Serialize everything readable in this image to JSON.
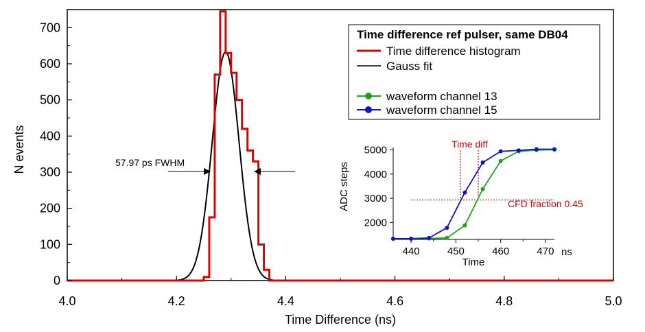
{
  "chart_data": [
    {
      "type": "line",
      "xlabel": "Time Difference (ns)",
      "ylabel": "N events",
      "xlim": [
        4.0,
        5.0
      ],
      "ylim": [
        0,
        750
      ],
      "xticks": [
        "4.0",
        "4.2",
        "4.4",
        "4.6",
        "4.8",
        "5.0"
      ],
      "yticks": [
        "0",
        "100",
        "200",
        "300",
        "400",
        "500",
        "600",
        "700"
      ],
      "legend": {
        "title": "Time difference ref pulser, same DB04",
        "entries": [
          {
            "label": "Time difference histogram",
            "color": "#e00000"
          },
          {
            "label": "Gauss fit",
            "color": "#000000"
          },
          {
            "label": "waveform channel 13",
            "color": "#1aa31a"
          },
          {
            "label": "waveform channel 15",
            "color": "#1010d0"
          }
        ]
      },
      "annotation": "57.97 ps FWHM",
      "series": [
        {
          "name": "Time difference histogram",
          "style": "step",
          "color": "#e00000",
          "bin_edges": [
            4.0,
            4.25,
            4.26,
            4.27,
            4.28,
            4.29,
            4.3,
            4.31,
            4.32,
            4.33,
            4.34,
            4.35,
            4.36,
            4.37,
            5.0
          ],
          "counts": [
            0,
            10,
            175,
            570,
            745,
            630,
            575,
            500,
            420,
            360,
            330,
            100,
            30,
            0
          ]
        },
        {
          "name": "Gauss fit",
          "style": "gaussian",
          "color": "#000000",
          "amplitude": 633,
          "mean": 4.29,
          "sigma": 0.0246,
          "x_range": [
            4.15,
            4.55
          ]
        }
      ]
    },
    {
      "type": "line",
      "xlabel": "Time",
      "ylabel": "ADC steps",
      "xunit": "ns",
      "xlim": [
        436,
        472
      ],
      "ylim": [
        1300,
        5100
      ],
      "xticks": [
        "440",
        "450",
        "460",
        "470"
      ],
      "yticks": [
        "2000",
        "3000",
        "4000",
        "5000"
      ],
      "annotations": {
        "time_diff": "Time diff",
        "cfd": "CFD fraction 0.45"
      },
      "cfd_level": 2930,
      "time_diff_x": [
        451,
        455
      ],
      "series": [
        {
          "name": "waveform channel 13",
          "color": "#1aa31a",
          "x": [
            436,
            440,
            444,
            448,
            452,
            456,
            460,
            464,
            468,
            472
          ],
          "y": [
            1330,
            1330,
            1340,
            1360,
            1880,
            3380,
            4540,
            4940,
            4990,
            5010
          ]
        },
        {
          "name": "waveform channel 15",
          "color": "#1010d0",
          "x": [
            436,
            440,
            444,
            448,
            452,
            456,
            460,
            464,
            468,
            472
          ],
          "y": [
            1330,
            1330,
            1360,
            1780,
            3240,
            4480,
            4940,
            4980,
            5030,
            5030
          ]
        }
      ]
    }
  ]
}
